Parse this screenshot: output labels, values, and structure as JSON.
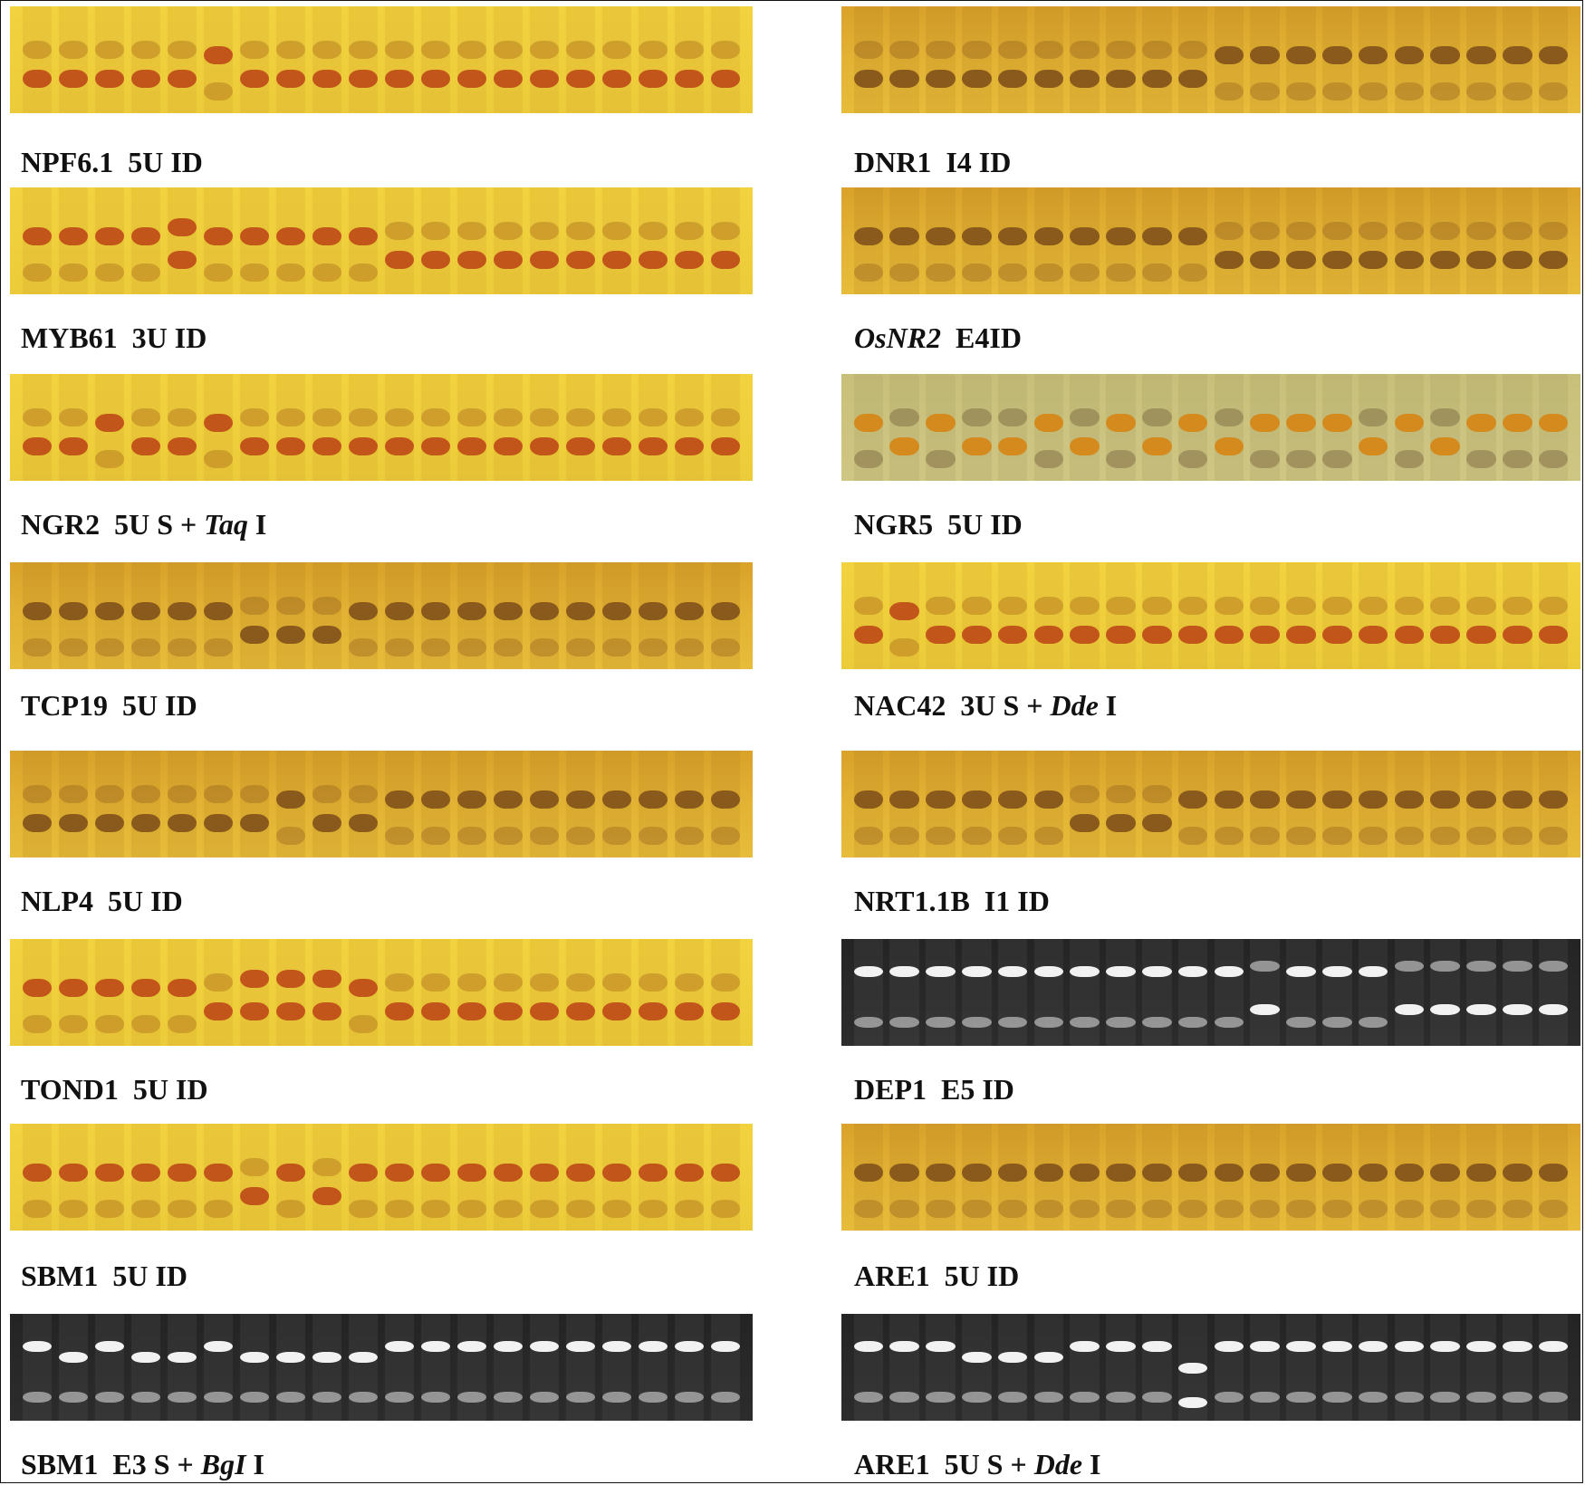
{
  "panels": [
    {
      "id": "npf61",
      "caption": [
        "NPF6.1  5U ID"
      ],
      "italic": [],
      "scheme": "yellow",
      "lanes": "",
      "pattern": "LLLLLHLLLLLLLLLLLLLL"
    },
    {
      "id": "dnr1",
      "caption": [
        "DNR1  I4 ID"
      ],
      "italic": [],
      "scheme": "amber",
      "pattern": "LLLLLLLLLLHHHHHHHHHH"
    },
    {
      "id": "myb61",
      "caption": [
        "MYB61  3U ID"
      ],
      "italic": [],
      "scheme": "yellow",
      "pattern": "HHHHXHHHHHLLLLLLLLLL"
    },
    {
      "id": "osnr2",
      "caption": [
        "",
        "OsNR2",
        "  E4ID"
      ],
      "italic": [
        1
      ],
      "scheme": "amber",
      "pattern": "HHHHHHHHHHLLLLLLLLLL"
    },
    {
      "id": "ngr2",
      "caption": [
        "NGR2  5U S + ",
        "Taq",
        " I"
      ],
      "italic": [
        1
      ],
      "scheme": "yellow",
      "pattern": "LLHLLHLLLLLLLLLLLLLL"
    },
    {
      "id": "ngr5",
      "caption": [
        "NGR5  5U ID"
      ],
      "italic": [],
      "scheme": "olive",
      "pattern": "HLHLLHLHLHLHHHLHLHHH"
    },
    {
      "id": "tcp19",
      "caption": [
        "TCP19  5U ID"
      ],
      "italic": [],
      "scheme": "amber",
      "pattern": "HHHHHHLLLHHHHHHHHHHH"
    },
    {
      "id": "nac42",
      "caption": [
        "NAC42  3U S + ",
        "Dde",
        " I"
      ],
      "italic": [
        1
      ],
      "scheme": "yellow",
      "pattern": "LHLLLLLLLLLLLLLLLLLL"
    },
    {
      "id": "nlp4",
      "caption": [
        "NLP4  5U ID"
      ],
      "italic": [],
      "scheme": "amber",
      "pattern": "LLLLLLLHLLHHHHHHHHHH"
    },
    {
      "id": "nrt11b",
      "caption": [
        "NRT1.1B  I1 ID"
      ],
      "italic": [],
      "scheme": "amber",
      "pattern": "HHHHHHLLLHHHHHHHHHHH"
    },
    {
      "id": "tond1",
      "caption": [
        "TOND1  5U ID"
      ],
      "italic": [],
      "scheme": "yellow",
      "pattern": "HHHHHLXXXHLLLLLLLLLL"
    },
    {
      "id": "dep1",
      "caption": [
        "DEP1  E5 ID"
      ],
      "italic": [],
      "scheme": "black",
      "pattern": "HHHHHHHHHHHLHHHLLLLL"
    },
    {
      "id": "sbm1a",
      "caption": [
        "SBM1  5U ID"
      ],
      "italic": [],
      "scheme": "yellow",
      "pattern": "HHHHHHLHLHHHHHHHHHHH"
    },
    {
      "id": "are1a",
      "caption": [
        "ARE1  5U ID"
      ],
      "italic": [],
      "scheme": "amber",
      "pattern": "HHHHHHHHHHHHHHHHHHHH"
    },
    {
      "id": "sbm1b",
      "caption": [
        "SBM1  E3 S + ",
        "BgI",
        " I"
      ],
      "italic": [
        1
      ],
      "scheme": "black",
      "pattern": "HMHMMHMMMMHHHHHHHHHH"
    },
    {
      "id": "are1b",
      "caption": [
        "ARE1  5U S + ",
        "Dde",
        " I"
      ],
      "italic": [
        1
      ],
      "scheme": "black",
      "pattern": "HHHMMMHHHDHHHHHHHHHH"
    }
  ]
}
